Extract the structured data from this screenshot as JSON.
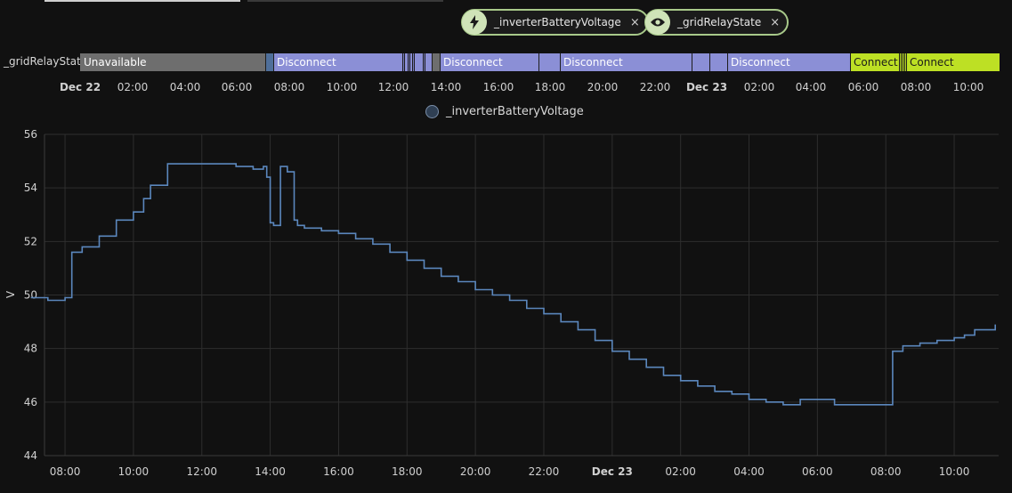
{
  "chips": [
    {
      "icon": "lightning-icon",
      "label": "_inverterBatteryVoltage",
      "close": "×"
    },
    {
      "icon": "eye-icon",
      "label": "_gridRelayState",
      "close": "×"
    }
  ],
  "timeline": {
    "entity": "_gridRelayState",
    "segments": [
      {
        "label": "Unavailable",
        "start": 0.0,
        "end": 0.2025,
        "color": "#6e6e6e",
        "text": "#ffffff"
      },
      {
        "label": "",
        "start": 0.2025,
        "end": 0.2115,
        "color": "#4f6f9a",
        "text": "#ffffff"
      },
      {
        "label": "Disconnect",
        "start": 0.2115,
        "end": 0.3845,
        "color": "#8b8fd6",
        "text": "#ffffff"
      },
      {
        "label": "",
        "start": 0.3845,
        "end": 0.3905,
        "color": "#7f83c6",
        "text": "#ffffff"
      },
      {
        "label": "",
        "start": 0.3905,
        "end": 0.3965,
        "color": "#8b8fd6",
        "text": "#ffffff"
      },
      {
        "label": "",
        "start": 0.3965,
        "end": 0.4035,
        "color": "#7f83c6",
        "text": "#ffffff"
      },
      {
        "label": "",
        "start": 0.4035,
        "end": 0.3835,
        "color": "#8b8fd6",
        "text": "#ffffff"
      },
      {
        "label": "",
        "start": 0.3835,
        "end": 0.3835,
        "color": "#8b8fd6",
        "text": "#ffffff"
      },
      {
        "label": "",
        "start": 0.3835,
        "end": 0.3835,
        "color": "#8b8fd6",
        "text": "#ffffff"
      },
      {
        "label": "",
        "start": 0.3835,
        "end": 0.3835,
        "color": "#8b8fd6",
        "text": "#ffffff"
      },
      {
        "label": "",
        "start": 0.3835,
        "end": 0.3835,
        "color": "#8b8fd6",
        "text": "#ffffff"
      },
      {
        "label": "",
        "start": 0.3835,
        "end": 0.3835,
        "color": "#8b8fd6",
        "text": "#ffffff"
      },
      {
        "label": "",
        "start": 0.3835,
        "end": 0.3835,
        "color": "#8b8fd6",
        "text": "#ffffff"
      },
      {
        "label": "",
        "start": 0.3835,
        "end": 0.3835,
        "color": "#8b8fd6",
        "text": "#ffffff"
      },
      {
        "label": "",
        "start": 0.3835,
        "end": 0.3835,
        "color": "#8b8fd6",
        "text": "#ffffff"
      },
      {
        "label": "",
        "start": 0.3835,
        "end": 0.3835,
        "color": "#8b8fd6",
        "text": "#ffffff"
      },
      {
        "label": "",
        "start": 0.3835,
        "end": 0.3835,
        "color": "#8b8fd6",
        "text": "#ffffff"
      },
      {
        "label": "",
        "start": 0.3835,
        "end": 0.3835,
        "color": "#8b8fd6",
        "text": "#ffffff"
      },
      {
        "label": "",
        "start": 0.3835,
        "end": 0.3835,
        "color": "#8b8fd6",
        "text": "#ffffff"
      },
      {
        "label": "",
        "start": 0.3835,
        "end": 0.3835,
        "color": "#8b8fd6",
        "text": "#ffffff"
      },
      {
        "label": "",
        "start": 0.3835,
        "end": 0.3835,
        "color": "#8b8fd6",
        "text": "#ffffff"
      },
      {
        "label": "",
        "start": 0.3835,
        "end": 0.3835,
        "color": "#8b8fd6",
        "text": "#ffffff"
      },
      {
        "label": "",
        "start": 0.3835,
        "end": 0.3835,
        "color": "#8b8fd6",
        "text": "#ffffff"
      },
      {
        "label": "",
        "start": 0.3835,
        "end": 0.3835,
        "color": "#8b8fd6",
        "text": "#ffffff"
      },
      {
        "label": "",
        "start": 0.3835,
        "end": 0.3835,
        "color": "#8b8fd6",
        "text": "#ffffff"
      },
      {
        "label": "",
        "start": 0.3835,
        "end": 0.3835,
        "color": "#8b8fd6",
        "text": "#ffffff"
      },
      {
        "label": "",
        "start": 0.3835,
        "end": 0.3835,
        "color": "#8b8fd6",
        "text": "#ffffff"
      },
      {
        "label": "",
        "start": 0.3835,
        "end": 0.3835,
        "color": "#8b8fd6",
        "text": "#ffffff"
      },
      {
        "label": "",
        "start": 0.3835,
        "end": 0.3835,
        "color": "#8b8fd6",
        "text": "#ffffff"
      },
      {
        "label": "",
        "start": 0.3835,
        "end": 0.3835,
        "color": "#8b8fd6",
        "text": "#ffffff"
      },
      {
        "label": "",
        "start": 0.3835,
        "end": 0.3835,
        "color": "#8b8fd6",
        "text": "#ffffff"
      },
      {
        "label": "",
        "start": 0.3835,
        "end": 0.3835,
        "color": "#8b8fd6",
        "text": "#ffffff"
      },
      {
        "label": "",
        "start": 0.3835,
        "end": 0.3835,
        "color": "#8b8fd6",
        "text": "#ffffff"
      },
      {
        "label": "",
        "start": 0.3835,
        "end": 0.3835,
        "color": "#8b8fd6",
        "text": "#ffffff"
      },
      {
        "label": "",
        "start": 0.3835,
        "end": 0.3835,
        "color": "#8b8fd6",
        "text": "#ffffff"
      },
      {
        "label": "",
        "start": 0.3835,
        "end": 0.3835,
        "color": "#8b8fd6",
        "text": "#ffffff"
      },
      {
        "label": "",
        "start": 0.3835,
        "end": 0.3835,
        "color": "#8b8fd6",
        "text": "#ffffff"
      },
      {
        "label": "",
        "start": 0.3835,
        "end": 0.3835,
        "color": "#8b8fd6",
        "text": "#ffffff"
      },
      {
        "label": "",
        "start": 0.3835,
        "end": 0.3835,
        "color": "#8b8fd6",
        "text": "#ffffff"
      },
      {
        "label": "",
        "start": 0.3835,
        "end": 0.3835,
        "color": "#8b8fd6",
        "text": "#ffffff"
      },
      {
        "label": "",
        "start": 0.3835,
        "end": 0.3835,
        "color": "#8b8fd6",
        "text": "#ffffff"
      },
      {
        "label": "",
        "start": 0.3835,
        "end": 0.3835,
        "color": "#8b8fd6",
        "text": "#ffffff"
      },
      {
        "label": "",
        "start": 0.3835,
        "end": 0.3835,
        "color": "#8b8fd6",
        "text": "#ffffff"
      },
      {
        "label": "",
        "start": 0.3835,
        "end": 0.3835,
        "color": "#8b8fd6",
        "text": "#ffffff"
      },
      {
        "label": "",
        "start": 0.3835,
        "end": 0.3835,
        "color": "#8b8fd6",
        "text": "#ffffff"
      },
      {
        "label": "",
        "start": 0.3835,
        "end": 0.3835,
        "color": "#8b8fd6",
        "text": "#ffffff"
      },
      {
        "label": "",
        "start": 0.3835,
        "end": 0.3835,
        "color": "#8b8fd6",
        "text": "#ffffff"
      },
      {
        "label": "",
        "start": 0.3835,
        "end": 0.3835,
        "color": "#8b8fd6",
        "text": "#ffffff"
      },
      {
        "label": "",
        "start": 0.3835,
        "end": 0.3835,
        "color": "#8b8fd6",
        "text": "#ffffff"
      },
      {
        "label": "",
        "start": 0.3835,
        "end": 0.3835,
        "color": "#8b8fd6",
        "text": "#ffffff"
      },
      {
        "label": "",
        "start": 0.3835,
        "end": 0.3835,
        "color": "#8b8fd6",
        "text": "#ffffff"
      },
      {
        "label": "",
        "start": 0.3835,
        "end": 0.3835,
        "color": "#8b8fd6",
        "text": "#ffffff"
      },
      {
        "label": "",
        "start": 0.3835,
        "end": 0.3835,
        "color": "#8b8fd6",
        "text": "#ffffff"
      },
      {
        "label": "",
        "start": 0.3835,
        "end": 0.3835,
        "color": "#8b8fd6",
        "text": "#ffffff"
      },
      {
        "label": "",
        "start": 0.3835,
        "end": 0.3835,
        "color": "#8b8fd6",
        "text": "#ffffff"
      },
      {
        "label": "",
        "start": 0.3835,
        "end": 0.3835,
        "color": "#8b8fd6",
        "text": "#ffffff"
      },
      {
        "label": "",
        "start": 0.3835,
        "end": 0.3835,
        "color": "#8b8fd6",
        "text": "#ffffff"
      },
      {
        "label": "",
        "start": 0.3835,
        "end": 0.3835,
        "color": "#8b8fd6",
        "text": "#ffffff"
      },
      {
        "label": "",
        "start": 0.3835,
        "end": 0.3835,
        "color": "#8b8fd6",
        "text": "#ffffff"
      },
      {
        "label": "",
        "start": 0.3835,
        "end": 0.3835,
        "color": "#8b8fd6",
        "text": "#ffffff"
      },
      {
        "label": "",
        "start": 0.3835,
        "end": 0.3835,
        "color": "#8b8fd6",
        "text": "#ffffff"
      },
      {
        "label": "",
        "start": 0.3835,
        "end": 0.3835,
        "color": "#8b8fd6",
        "text": "#ffffff"
      },
      {
        "label": "",
        "start": 0.3835,
        "end": 0.3835,
        "color": "#8b8fd6",
        "text": "#ffffff"
      }
    ],
    "ticks": [
      {
        "label": "Dec 22",
        "bold": true
      },
      {
        "label": "02:00"
      },
      {
        "label": "04:00"
      },
      {
        "label": "06:00"
      },
      {
        "label": "08:00"
      },
      {
        "label": "10:00"
      },
      {
        "label": "12:00"
      },
      {
        "label": "14:00"
      },
      {
        "label": "16:00"
      },
      {
        "label": "18:00"
      },
      {
        "label": "20:00"
      },
      {
        "label": "22:00"
      },
      {
        "label": "Dec 23",
        "bold": true
      },
      {
        "label": "02:00"
      },
      {
        "label": "04:00"
      },
      {
        "label": "06:00"
      },
      {
        "label": "08:00"
      },
      {
        "label": "10:00"
      }
    ]
  },
  "legend": {
    "label": "_inverterBatteryVoltage"
  },
  "chart_data": {
    "type": "line",
    "series": [
      {
        "name": "_inverterBatteryVoltage",
        "color": "#5b87bd"
      }
    ],
    "ylabel": "V",
    "ylim": [
      44,
      56
    ],
    "yticks": [
      "56",
      "54",
      "52",
      "50",
      "48",
      "46",
      "44"
    ],
    "xticks": [
      "08:00",
      "10:00",
      "12:00",
      "14:00",
      "16:00",
      "18:00",
      "20:00",
      "22:00",
      "Dec 23",
      "02:00",
      "04:00",
      "06:00",
      "08:00",
      "10:00"
    ],
    "x_hours": [
      7.0,
      7.5,
      8.0,
      8.2,
      8.5,
      9.0,
      9.5,
      10.0,
      10.3,
      10.5,
      11.0,
      11.5,
      12.0,
      12.5,
      13.0,
      13.5,
      13.8,
      13.9,
      14.0,
      14.1,
      14.3,
      14.4,
      14.5,
      14.7,
      14.8,
      15.0,
      15.5,
      16.0,
      16.5,
      17.0,
      17.5,
      18.0,
      18.5,
      19.0,
      19.5,
      20.0,
      20.5,
      21.0,
      21.5,
      22.0,
      22.5,
      23.0,
      23.5,
      24.0,
      24.5,
      25.0,
      25.5,
      26.0,
      26.5,
      27.0,
      27.5,
      28.0,
      28.5,
      29.0,
      29.5,
      30.0,
      30.5,
      31.0,
      31.5,
      32.0,
      32.2,
      32.5,
      33.0,
      33.5,
      34.0,
      34.3,
      34.6,
      35.2
    ],
    "values": [
      49.9,
      49.8,
      49.9,
      51.6,
      51.8,
      52.2,
      52.8,
      53.1,
      53.6,
      54.1,
      54.9,
      54.9,
      54.9,
      54.9,
      54.8,
      54.7,
      54.8,
      54.4,
      52.7,
      52.6,
      54.8,
      54.8,
      54.6,
      52.8,
      52.6,
      52.5,
      52.4,
      52.3,
      52.1,
      51.9,
      51.6,
      51.3,
      51.0,
      50.7,
      50.5,
      50.2,
      50.0,
      49.8,
      49.5,
      49.3,
      49.0,
      48.7,
      48.3,
      47.9,
      47.6,
      47.3,
      47.0,
      46.8,
      46.6,
      46.4,
      46.3,
      46.1,
      46.0,
      45.9,
      46.1,
      46.1,
      45.9,
      45.9,
      45.9,
      45.9,
      47.9,
      48.1,
      48.2,
      48.3,
      48.4,
      48.5,
      48.7,
      48.9
    ]
  }
}
